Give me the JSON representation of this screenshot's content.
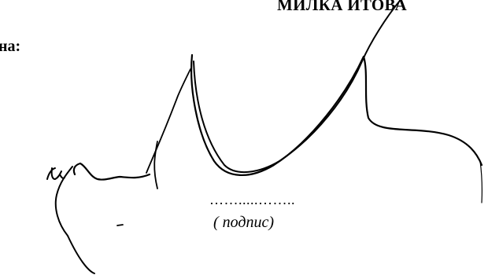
{
  "header": {
    "name": "МИЛКА ИТОВА"
  },
  "form": {
    "label": "на:",
    "signature_line": "…….....……..",
    "signature_caption": "( подпис)"
  }
}
